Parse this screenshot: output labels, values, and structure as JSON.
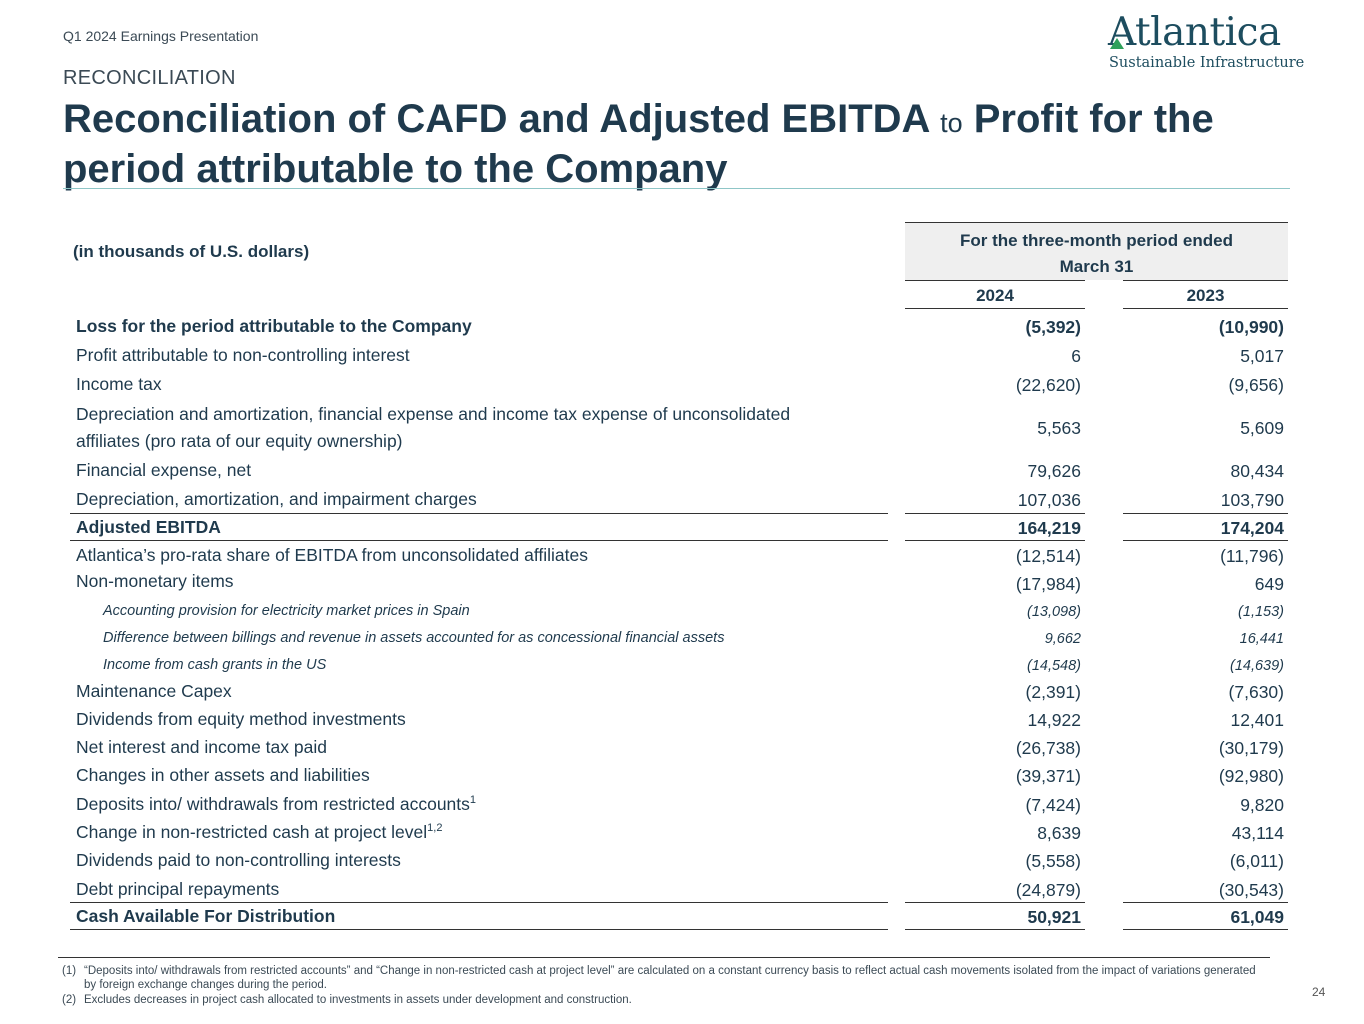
{
  "header": {
    "presentation": "Q1 2024 Earnings Presentation",
    "section": "RECONCILIATION",
    "title_part1": "Reconciliation of CAFD and Adjusted EBITDA",
    "title_connector": "to",
    "title_part2": "Profit for the period attributable to the Company"
  },
  "logo": {
    "name": "Atlantica",
    "tagline": "Sustainable Infrastructure",
    "accent_color": "#2da05a"
  },
  "table": {
    "units": "(in thousands of U.S. dollars)",
    "period_line1": "For the three-month period ended",
    "period_line2": "March 31",
    "year1": "2024",
    "year2": "2023",
    "rows": [
      {
        "label": "Loss for the period attributable to the Company",
        "v1": "(5,392)",
        "v2": "(10,990)"
      },
      {
        "label": "Profit attributable to non-controlling interest",
        "v1": "6",
        "v2": "5,017"
      },
      {
        "label": "Income tax",
        "v1": "(22,620)",
        "v2": "(9,656)"
      },
      {
        "label_line1": "Depreciation and amortization, financial expense and income tax expense of unconsolidated",
        "label_line2": "affiliates (pro rata of our equity ownership)",
        "v1": "5,563",
        "v2": "5,609"
      },
      {
        "label": "Financial expense, net",
        "v1": "79,626",
        "v2": "80,434"
      },
      {
        "label": "Depreciation, amortization, and impairment charges",
        "v1": "107,036",
        "v2": "103,790"
      },
      {
        "label": "Adjusted EBITDA",
        "v1": "164,219",
        "v2": "174,204"
      },
      {
        "label": "Atlantica’s pro-rata share of EBITDA from unconsolidated affiliates",
        "v1": "(12,514)",
        "v2": "(11,796)"
      },
      {
        "label": "Non-monetary items",
        "v1": "(17,984)",
        "v2": "649"
      },
      {
        "label": "Accounting provision for electricity market prices in Spain",
        "v1": "(13,098)",
        "v2": "(1,153)"
      },
      {
        "label": "Difference between billings and revenue in assets accounted  for as concessional  financial assets",
        "v1": "9,662",
        "v2": "16,441"
      },
      {
        "label": "Income from cash grants in the US",
        "v1": "(14,548)",
        "v2": "(14,639)"
      },
      {
        "label": "Maintenance Capex",
        "v1": "(2,391)",
        "v2": "(7,630)"
      },
      {
        "label": "Dividends from equity method investments",
        "v1": "14,922",
        "v2": "12,401"
      },
      {
        "label": "Net interest and income tax paid",
        "v1": "(26,738)",
        "v2": "(30,179)"
      },
      {
        "label": "Changes in other assets and liabilities",
        "v1": "(39,371)",
        "v2": "(92,980)"
      },
      {
        "label": "Deposits into/ withdrawals from restricted accounts",
        "sup": "1",
        "v1": "(7,424)",
        "v2": "9,820"
      },
      {
        "label": "Change in non-restricted cash at project level",
        "sup": "1,2",
        "v1": "8,639",
        "v2": "43,114"
      },
      {
        "label": "Dividends paid to non-controlling interests",
        "v1": "(5,558)",
        "v2": "(6,011)"
      },
      {
        "label": "Debt principal repayments",
        "v1": "(24,879)",
        "v2": "(30,543)"
      },
      {
        "label": "Cash Available For Distribution",
        "v1": "50,921",
        "v2": "61,049"
      }
    ]
  },
  "footnotes": [
    {
      "num": "(1)",
      "text": "“Deposits into/ withdrawals  from restricted accounts”  and “Change  in non-restricted  cash at project level”  are calculated  on a constant  currency basis to reflect  actual cash movements  isolated from the impact of variations generated by foreign exchange  changes during  the period."
    },
    {
      "num": "(2)",
      "text": "Excludes decreases  in project cash allocated  to investments  in assets under development  and construction."
    }
  ],
  "page_number": "24"
}
